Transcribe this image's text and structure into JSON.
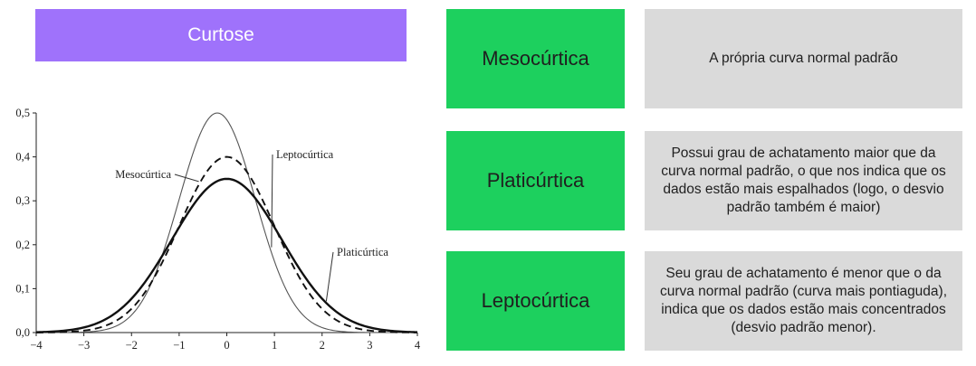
{
  "title": "Curtose",
  "chart_data": {
    "type": "line",
    "xlim": [
      -4,
      4
    ],
    "ylim": [
      0,
      0.5
    ],
    "x_ticks": [
      "−4",
      "−3",
      "−2",
      "−1",
      "0",
      "1",
      "2",
      "3",
      "4"
    ],
    "y_ticks": [
      "0,0",
      "0,1",
      "0,2",
      "0,3",
      "0,4",
      "0,5"
    ],
    "series": [
      {
        "name": "Leptocúrtica",
        "style": "thin",
        "color": "#555555",
        "peak_x": -0.2,
        "peak_y": 0.5,
        "sigma": 0.8
      },
      {
        "name": "Mesocúrtica",
        "style": "dashed",
        "color": "#111111",
        "peak_x": 0,
        "peak_y": 0.4,
        "sigma": 1.0
      },
      {
        "name": "Platicúrtica",
        "style": "thick",
        "color": "#111111",
        "peak_x": 0,
        "peak_y": 0.35,
        "sigma": 1.15
      }
    ]
  },
  "rows": [
    {
      "label": "Mesocúrtica",
      "description": "A própria curva normal padrão"
    },
    {
      "label": "Platicúrtica",
      "description": "Possui grau de achatamento maior que da curva normal padrão, o que nos indica que os dados estão mais espalhados (logo, o desvio padrão também é maior)"
    },
    {
      "label": "Leptocúrtica",
      "description": "Seu grau de achatamento é menor que o da curva normal padrão (curva mais pontiaguda), indica que os dados estão mais concentrados (desvio padrão menor)."
    }
  ],
  "colors": {
    "title_bg": "#9f72fb",
    "label_bg": "#1dd05e",
    "desc_bg": "#dadada"
  }
}
